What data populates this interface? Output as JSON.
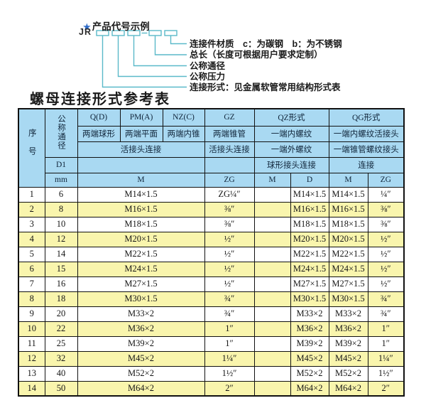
{
  "diagram": {
    "star": "★",
    "heading": "产品代号示例",
    "code_prefix": "JR",
    "labels": [
      "连接件材质　c：为碳钢　b：为不锈钢",
      "总长（长度可根据用户要求定制）",
      "公称通径",
      "公称压力",
      "连接形式：见金属软管常用结构形式表"
    ],
    "line_color": "#5ab9c9"
  },
  "table": {
    "title": "螺母连接形式参考表",
    "header": {
      "seq": "序号",
      "nominal_diameter": "公称通径",
      "d1": "D1",
      "mm": "mm",
      "col_q": "Q(D)",
      "col_pm": "PM(A)",
      "col_nz": "NZ(C)",
      "col_gz": "GZ",
      "col_qz": "QZ形式",
      "col_qg": "QG形式",
      "q_ends": "两端球形",
      "pm_ends": "两端平面",
      "nz_ends": "两端内锥",
      "gz_ends": "两端锥管",
      "qz_inner": "一端内螺纹",
      "qg_inner": "一端内螺纹活接头",
      "union_conn": "活接头连接",
      "gz_union": "活接头连接",
      "qz_outer": "一端外螺纹",
      "qg_taper": "一端锥管螺纹接头",
      "qz_ball": "球形接头连接",
      "qg_conn": "连接",
      "m": "M",
      "zg": "ZG",
      "qz_m": "M",
      "qz_d": "D",
      "qg_m": "M",
      "qg_zg": "ZG"
    },
    "row_colors": {
      "even": "#f9f5ad",
      "odd": "#ffffff",
      "header": "#a9d9f2"
    },
    "rows": [
      {
        "no": "1",
        "mm": "6",
        "m": "M14×1.5",
        "zg": "ZG¼″",
        "qz_m": "",
        "qz_d": "M14×1.5",
        "qg_m": "M14×1.5",
        "qg_zg": "¼″"
      },
      {
        "no": "2",
        "mm": "8",
        "m": "M16×1.5",
        "zg": "⅜″",
        "qz_m": "",
        "qz_d": "M16×1.5",
        "qg_m": "M16×1.5",
        "qg_zg": "⅜″"
      },
      {
        "no": "3",
        "mm": "10",
        "m": "M18×1.5",
        "zg": "⅜″",
        "qz_m": "",
        "qz_d": "M18×1.5",
        "qg_m": "M18×1.5",
        "qg_zg": "⅜″"
      },
      {
        "no": "4",
        "mm": "12",
        "m": "M20×1.5",
        "zg": "½″",
        "qz_m": "",
        "qz_d": "M20×1.5",
        "qg_m": "M20×1.5",
        "qg_zg": "½″"
      },
      {
        "no": "5",
        "mm": "14",
        "m": "M22×1.5",
        "zg": "½″",
        "qz_m": "",
        "qz_d": "M22×1.5",
        "qg_m": "M22×1.5",
        "qg_zg": "½″"
      },
      {
        "no": "6",
        "mm": "15",
        "m": "M24×1.5",
        "zg": "½″",
        "qz_m": "",
        "qz_d": "M24×1.5",
        "qg_m": "M24×1.5",
        "qg_zg": "½″"
      },
      {
        "no": "7",
        "mm": "16",
        "m": "M27×1.5",
        "zg": "½″",
        "qz_m": "",
        "qz_d": "M27×1.5",
        "qg_m": "M27×1.5",
        "qg_zg": "½″"
      },
      {
        "no": "8",
        "mm": "18",
        "m": "M30×1.5",
        "zg": "¾″",
        "qz_m": "",
        "qz_d": "M30×1.5",
        "qg_m": "M30×1.5",
        "qg_zg": "¾″"
      },
      {
        "no": "9",
        "mm": "20",
        "m": "M33×2",
        "zg": "¾″",
        "qz_m": "",
        "qz_d": "M33×2",
        "qg_m": "M33×2",
        "qg_zg": "¾″"
      },
      {
        "no": "10",
        "mm": "22",
        "m": "M36×2",
        "zg": "1″",
        "qz_m": "",
        "qz_d": "M36×2",
        "qg_m": "M36×2",
        "qg_zg": "1″"
      },
      {
        "no": "11",
        "mm": "25",
        "m": "M39×2",
        "zg": "1″",
        "qz_m": "",
        "qz_d": "M39×2",
        "qg_m": "M39×2",
        "qg_zg": "1″"
      },
      {
        "no": "12",
        "mm": "32",
        "m": "M45×2",
        "zg": "1¼″",
        "qz_m": "",
        "qz_d": "M45×2",
        "qg_m": "M45×2",
        "qg_zg": "1¼″"
      },
      {
        "no": "13",
        "mm": "40",
        "m": "M52×2",
        "zg": "1½″",
        "qz_m": "",
        "qz_d": "M52×2",
        "qg_m": "M52×2",
        "qg_zg": "1½″"
      },
      {
        "no": "14",
        "mm": "50",
        "m": "M64×2",
        "zg": "2″",
        "qz_m": "",
        "qz_d": "M64×2",
        "qg_m": "M64×2",
        "qg_zg": "2″"
      }
    ]
  }
}
